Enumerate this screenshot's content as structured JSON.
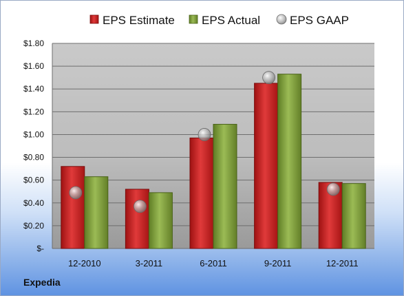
{
  "chart_data": {
    "type": "bar",
    "categories": [
      "12-2010",
      "3-2011",
      "6-2011",
      "9-2011",
      "12-2011"
    ],
    "series": [
      {
        "name": "EPS Estimate",
        "kind": "bar",
        "color": "#c81e1e",
        "values": [
          0.72,
          0.52,
          0.97,
          1.45,
          0.58
        ]
      },
      {
        "name": "EPS Actual",
        "kind": "bar",
        "color": "#7e9e3a",
        "values": [
          0.63,
          0.49,
          1.09,
          1.53,
          0.57
        ]
      },
      {
        "name": "EPS GAAP",
        "kind": "marker",
        "color": "#a8a8a8",
        "values": [
          0.49,
          0.37,
          1.0,
          1.5,
          0.52
        ]
      }
    ],
    "ylim": [
      0,
      1.8
    ],
    "yticks": [
      0,
      0.2,
      0.4,
      0.6,
      0.8,
      1.0,
      1.2,
      1.4,
      1.6,
      1.8
    ],
    "ytick_labels": [
      "$-",
      "$0.20",
      "$0.40",
      "$0.60",
      "$0.80",
      "$1.00",
      "$1.20",
      "$1.40",
      "$1.60",
      "$1.80"
    ],
    "grid": true,
    "legend_position": "top"
  },
  "footer": {
    "company": "Expedia"
  }
}
